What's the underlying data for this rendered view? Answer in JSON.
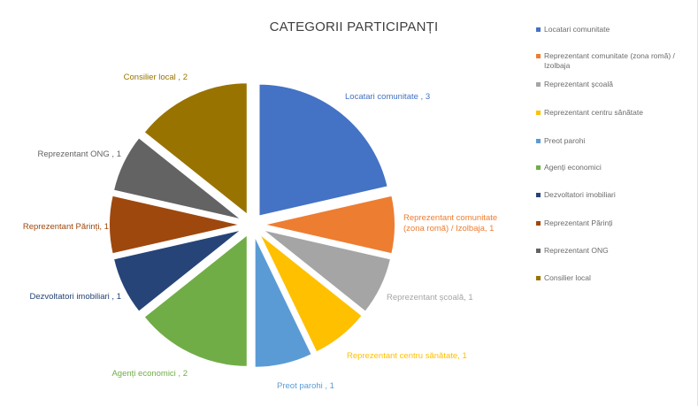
{
  "chart_data": {
    "type": "pie",
    "title": "CATEGORII PARTICIPANȚI",
    "categories": [
      "Locatari comunitate",
      "Reprezentant comunitate (zona romă) / Izolbaja",
      "Reprezentant școală",
      "Reprezentant centru sănătate",
      "Preot parohi",
      "Agenți economici",
      "Dezvoltatori imobiliari",
      "Reprezentant Părinți",
      "Reprezentant ONG",
      "Consilier local"
    ],
    "values": [
      3,
      1,
      1,
      1,
      1,
      2,
      1,
      1,
      1,
      2
    ],
    "data_labels": [
      "Locatari comunitate , 3",
      "Reprezentant comunitate (zona romă) / Izolbaja, 1",
      "Reprezentant școală, 1",
      "Reprezentant centru sănătate, 1",
      "Preot parohi , 1",
      "Agenți economici , 2",
      "Dezvoltatori imobiliari , 1",
      "Reprezentant Părinți, 1",
      "Reprezentant ONG , 1",
      "Consilier local , 2"
    ],
    "colors": [
      "#4472C4",
      "#ED7D31",
      "#A5A5A5",
      "#FFC000",
      "#5B9BD5",
      "#70AD47",
      "#264478",
      "#9E480E",
      "#636363",
      "#997300"
    ],
    "legend_position": "right",
    "exploded": true
  }
}
